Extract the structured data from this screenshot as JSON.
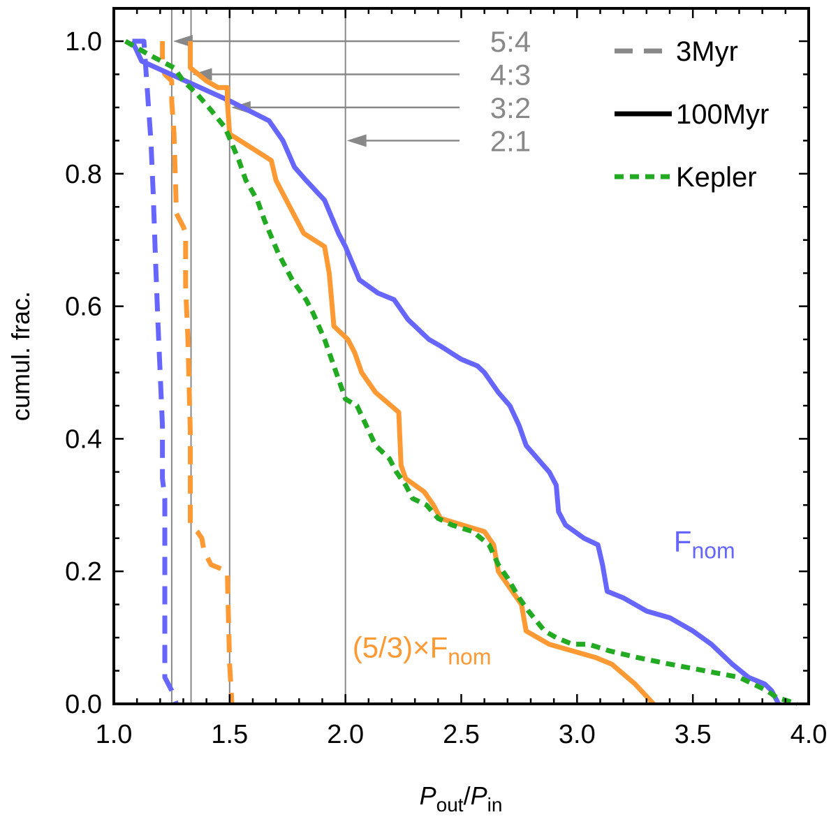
{
  "chart_data": {
    "type": "line",
    "xlabel": {
      "main1": "P",
      "sub1": "out",
      "mid": "/",
      "main2": "P",
      "sub2": "in"
    },
    "ylabel": "cumul. frac.",
    "xlim": [
      1.0,
      4.0
    ],
    "ylim": [
      0.0,
      1.05
    ],
    "xticks": [
      "1.0",
      "1.5",
      "2.0",
      "2.5",
      "3.0",
      "3.5",
      "4.0"
    ],
    "yticks": [
      "0.0",
      "0.2",
      "0.4",
      "0.6",
      "0.8",
      "1.0"
    ],
    "grid": false,
    "legend_position": "top-right",
    "legend": [
      {
        "label": "3Myr",
        "style": "dashed",
        "color": "#888888"
      },
      {
        "label": "100Myr",
        "style": "solid",
        "color": "#000000"
      },
      {
        "label": "Kepler",
        "style": "dotted",
        "color": "#22aa22"
      }
    ],
    "resonances": [
      {
        "label": "5:4",
        "x": 1.25,
        "y": 1.0
      },
      {
        "label": "4:3",
        "x": 1.3333,
        "y": 0.95
      },
      {
        "label": "3:2",
        "x": 1.5,
        "y": 0.9
      },
      {
        "label": "2:1",
        "x": 2.0,
        "y": 0.85
      }
    ],
    "annotations": [
      {
        "text": "F",
        "sub": "nom",
        "prefix": "",
        "color": "#6666ff",
        "x": 3.55,
        "y": 0.23
      },
      {
        "text": "F",
        "sub": "nom",
        "prefix": "(5/3)×",
        "color": "#ff9933",
        "x": 2.33,
        "y": 0.07
      }
    ],
    "series": [
      {
        "name": "3Myr",
        "color": "#6666ff",
        "dash": "dashed",
        "x": [
          1.08,
          1.13,
          1.14,
          1.15,
          1.16,
          1.17,
          1.18,
          1.19,
          1.2,
          1.21,
          1.21,
          1.22,
          1.22,
          1.25,
          1.27
        ],
        "y": [
          1.0,
          1.0,
          0.95,
          0.9,
          0.85,
          0.77,
          0.67,
          0.58,
          0.5,
          0.42,
          0.34,
          0.31,
          0.04,
          0.02,
          0.0
        ]
      },
      {
        "name": "3Myr",
        "color": "#ff9933",
        "dash": "dashed",
        "x": [
          1.21,
          1.21,
          1.22,
          1.25,
          1.25,
          1.26,
          1.27,
          1.3,
          1.31,
          1.31,
          1.32,
          1.33,
          1.33,
          1.36,
          1.38,
          1.39,
          1.42,
          1.49,
          1.5,
          1.51
        ],
        "y": [
          1.0,
          0.96,
          0.95,
          0.94,
          0.91,
          0.86,
          0.74,
          0.72,
          0.71,
          0.63,
          0.55,
          0.41,
          0.27,
          0.26,
          0.25,
          0.23,
          0.21,
          0.2,
          0.06,
          0.0
        ]
      },
      {
        "name": "100Myr",
        "color": "#6666ff",
        "dash": "solid",
        "x": [
          1.08,
          1.12,
          1.5,
          1.67,
          1.73,
          1.78,
          1.83,
          1.91,
          1.97,
          2.0,
          2.06,
          2.14,
          2.21,
          2.27,
          2.36,
          2.41,
          2.5,
          2.57,
          2.6,
          2.66,
          2.71,
          2.75,
          2.78,
          2.83,
          2.88,
          2.91,
          2.92,
          2.95,
          3.03,
          3.09,
          3.11,
          3.13,
          3.2,
          3.3,
          3.4,
          3.5,
          3.58,
          3.67,
          3.74,
          3.81,
          3.84,
          3.87
        ],
        "y": [
          1.0,
          0.97,
          0.91,
          0.88,
          0.85,
          0.81,
          0.79,
          0.76,
          0.71,
          0.69,
          0.64,
          0.62,
          0.61,
          0.58,
          0.55,
          0.54,
          0.52,
          0.51,
          0.5,
          0.47,
          0.45,
          0.42,
          0.39,
          0.37,
          0.35,
          0.33,
          0.29,
          0.27,
          0.25,
          0.24,
          0.21,
          0.17,
          0.16,
          0.14,
          0.13,
          0.11,
          0.09,
          0.06,
          0.04,
          0.03,
          0.02,
          0.0
        ]
      },
      {
        "name": "100Myr",
        "color": "#ff9933",
        "dash": "solid",
        "x": [
          1.33,
          1.33,
          1.4,
          1.45,
          1.49,
          1.49,
          1.5,
          1.59,
          1.68,
          1.7,
          1.79,
          1.82,
          1.91,
          1.93,
          1.94,
          1.95,
          2.01,
          2.04,
          2.07,
          2.13,
          2.23,
          2.24,
          2.26,
          2.34,
          2.38,
          2.41,
          2.6,
          2.64,
          2.66,
          2.7,
          2.76,
          2.78,
          2.88,
          3.08,
          3.15,
          3.25,
          3.33
        ],
        "y": [
          1.0,
          0.96,
          0.94,
          0.93,
          0.93,
          0.91,
          0.86,
          0.84,
          0.82,
          0.79,
          0.73,
          0.71,
          0.69,
          0.65,
          0.61,
          0.57,
          0.55,
          0.53,
          0.5,
          0.47,
          0.44,
          0.36,
          0.34,
          0.32,
          0.3,
          0.28,
          0.26,
          0.24,
          0.2,
          0.18,
          0.15,
          0.11,
          0.09,
          0.07,
          0.06,
          0.03,
          0.0
        ]
      },
      {
        "name": "Kepler",
        "color": "#22aa22",
        "dash": "dotted",
        "x": [
          1.05,
          1.15,
          1.26,
          1.3,
          1.36,
          1.41,
          1.48,
          1.54,
          1.57,
          1.62,
          1.65,
          1.71,
          1.77,
          1.83,
          1.86,
          1.91,
          1.96,
          2.0,
          2.05,
          2.09,
          2.13,
          2.19,
          2.22,
          2.26,
          2.29,
          2.35,
          2.4,
          2.46,
          2.55,
          2.62,
          2.66,
          2.7,
          2.75,
          2.79,
          2.86,
          2.91,
          2.98,
          3.05,
          3.14,
          3.26,
          3.4,
          3.55,
          3.7,
          3.82,
          3.86,
          3.95
        ],
        "y": [
          1.0,
          0.98,
          0.96,
          0.94,
          0.92,
          0.9,
          0.87,
          0.82,
          0.79,
          0.76,
          0.73,
          0.68,
          0.64,
          0.61,
          0.59,
          0.55,
          0.5,
          0.46,
          0.45,
          0.42,
          0.39,
          0.37,
          0.35,
          0.33,
          0.31,
          0.3,
          0.28,
          0.27,
          0.26,
          0.24,
          0.21,
          0.19,
          0.16,
          0.14,
          0.11,
          0.1,
          0.09,
          0.09,
          0.08,
          0.07,
          0.06,
          0.05,
          0.04,
          0.02,
          0.01,
          0.0
        ]
      }
    ]
  }
}
